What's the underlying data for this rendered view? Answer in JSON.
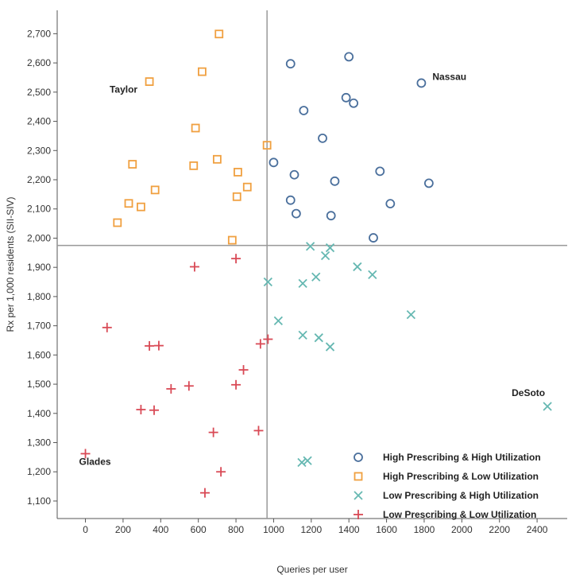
{
  "chart_data": {
    "type": "scatter",
    "title": "",
    "xlabel": "Queries per user",
    "ylabel": "Rx per 1,000 residents (SII-SIV)",
    "xlim": [
      -150,
      2560
    ],
    "ylim": [
      1040,
      2780
    ],
    "xticks": [
      0,
      200,
      400,
      600,
      800,
      1000,
      1200,
      1400,
      1600,
      1800,
      2000,
      2200,
      2400
    ],
    "xtick_labels": [
      "0",
      "200",
      "400",
      "600",
      "800",
      "1000",
      "1200",
      "1400",
      "1600",
      "1800",
      "2000",
      "2200",
      "2400"
    ],
    "yticks": [
      1100,
      1200,
      1300,
      1400,
      1500,
      1600,
      1700,
      1800,
      1900,
      2000,
      2100,
      2200,
      2300,
      2400,
      2500,
      2600,
      2700
    ],
    "ytick_labels": [
      "1,100",
      "1,200",
      "1,300",
      "1,400",
      "1,500",
      "1,600",
      "1,700",
      "1,800",
      "1,900",
      "2,000",
      "2,100",
      "2,200",
      "2,300",
      "2,400",
      "2,500",
      "2,600",
      "2,700"
    ],
    "reference_lines": {
      "x": 965,
      "y": 1975,
      "color": "#999999"
    },
    "grid": false,
    "legend_position": "bottom-right",
    "series": [
      {
        "name": "High Prescribing & High Utilization",
        "marker": "circle",
        "color": "#4a6f9c",
        "points": [
          [
            1090,
            2597
          ],
          [
            1400,
            2621
          ],
          [
            1785,
            2531
          ],
          [
            1385,
            2481
          ],
          [
            1425,
            2462
          ],
          [
            1160,
            2437
          ],
          [
            1260,
            2342
          ],
          [
            1000,
            2259
          ],
          [
            1110,
            2217
          ],
          [
            1325,
            2195
          ],
          [
            1565,
            2229
          ],
          [
            1825,
            2188
          ],
          [
            1090,
            2130
          ],
          [
            1620,
            2118
          ],
          [
            1120,
            2084
          ],
          [
            1305,
            2077
          ],
          [
            1530,
            2001
          ]
        ]
      },
      {
        "name": "High Prescribing & Low Utilization",
        "marker": "square",
        "color": "#f0a040",
        "points": [
          [
            710,
            2699
          ],
          [
            620,
            2570
          ],
          [
            340,
            2536
          ],
          [
            585,
            2377
          ],
          [
            965,
            2318
          ],
          [
            250,
            2253
          ],
          [
            575,
            2248
          ],
          [
            700,
            2270
          ],
          [
            810,
            2226
          ],
          [
            860,
            2175
          ],
          [
            370,
            2165
          ],
          [
            805,
            2142
          ],
          [
            230,
            2119
          ],
          [
            295,
            2107
          ],
          [
            170,
            2053
          ],
          [
            780,
            1993
          ]
        ]
      },
      {
        "name": "Low Prescribing & High Utilization",
        "marker": "x",
        "color": "#66b8b2",
        "points": [
          [
            1195,
            1972
          ],
          [
            1300,
            1967
          ],
          [
            1275,
            1940
          ],
          [
            1445,
            1902
          ],
          [
            1525,
            1875
          ],
          [
            1225,
            1867
          ],
          [
            1155,
            1845
          ],
          [
            970,
            1850
          ],
          [
            1730,
            1738
          ],
          [
            1025,
            1717
          ],
          [
            1155,
            1668
          ],
          [
            1240,
            1659
          ],
          [
            1300,
            1628
          ],
          [
            2455,
            1424
          ],
          [
            1150,
            1232
          ],
          [
            1180,
            1238
          ]
        ]
      },
      {
        "name": "Low Prescribing & Low Utilization",
        "marker": "plus",
        "color": "#d94a56",
        "points": [
          [
            580,
            1902
          ],
          [
            800,
            1930
          ],
          [
            115,
            1694
          ],
          [
            340,
            1631
          ],
          [
            390,
            1632
          ],
          [
            970,
            1654
          ],
          [
            930,
            1638
          ],
          [
            840,
            1549
          ],
          [
            455,
            1484
          ],
          [
            550,
            1494
          ],
          [
            800,
            1498
          ],
          [
            295,
            1413
          ],
          [
            365,
            1411
          ],
          [
            680,
            1335
          ],
          [
            920,
            1341
          ],
          [
            0,
            1262
          ],
          [
            720,
            1200
          ],
          [
            635,
            1128
          ]
        ]
      }
    ],
    "annotations": [
      {
        "text": "Nassau",
        "x": 1785,
        "y": 2531
      },
      {
        "text": "Taylor",
        "x": 340,
        "y": 2536
      },
      {
        "text": "DeSoto",
        "x": 2455,
        "y": 1424
      },
      {
        "text": "Glades",
        "x": 0,
        "y": 1262
      }
    ]
  }
}
